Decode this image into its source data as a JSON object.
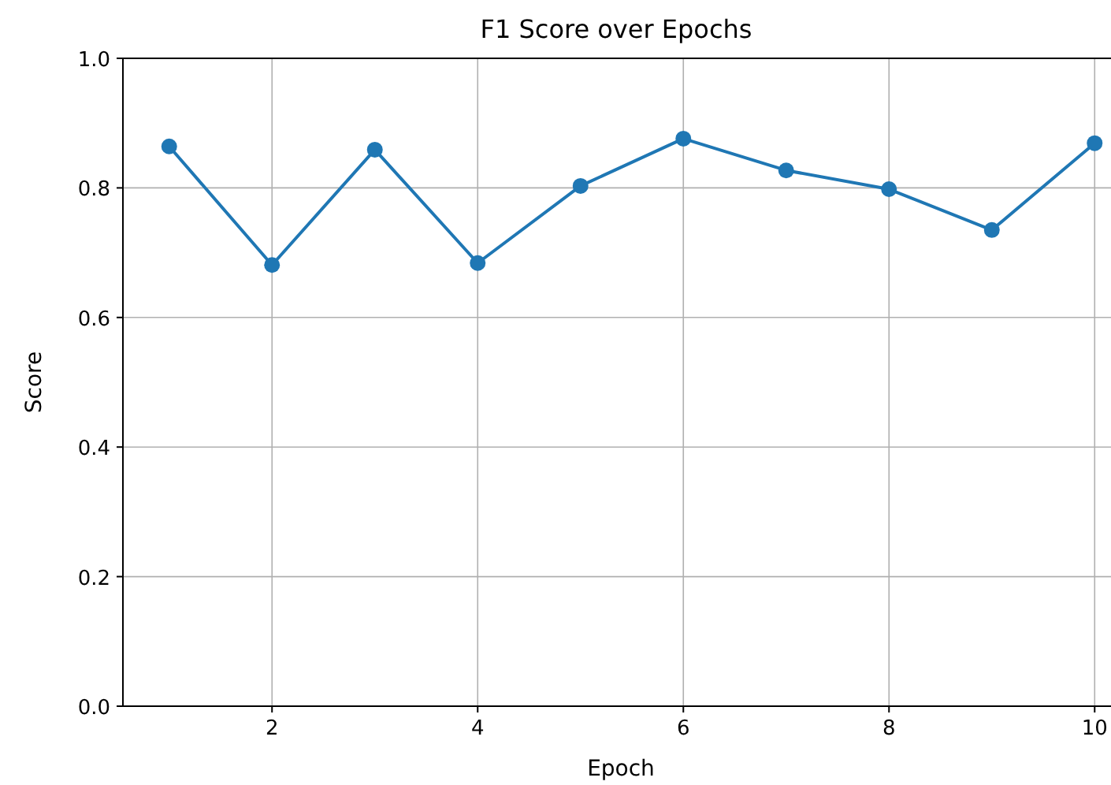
{
  "chart_data": {
    "type": "line",
    "title": "F1 Score over Epochs",
    "xlabel": "Epoch",
    "ylabel": "Score",
    "x": [
      1,
      2,
      3,
      4,
      5,
      6,
      7,
      8,
      9,
      10
    ],
    "series": [
      {
        "color": "#1f77b4",
        "values": [
          0.864,
          0.681,
          0.859,
          0.684,
          0.803,
          0.876,
          0.827,
          0.798,
          0.735,
          0.869
        ]
      }
    ],
    "xlim": [
      0.55,
      10.45
    ],
    "xticks": [
      2,
      4,
      6,
      8,
      10
    ],
    "ylim": [
      0,
      1
    ],
    "yticks": [
      {
        "value": 0,
        "label": "0.0"
      },
      0.2,
      0.4,
      0.6,
      0.8,
      {
        "value": 1,
        "label": "1.0"
      }
    ],
    "grid": true,
    "marker": "circle",
    "line_style": "solid"
  }
}
